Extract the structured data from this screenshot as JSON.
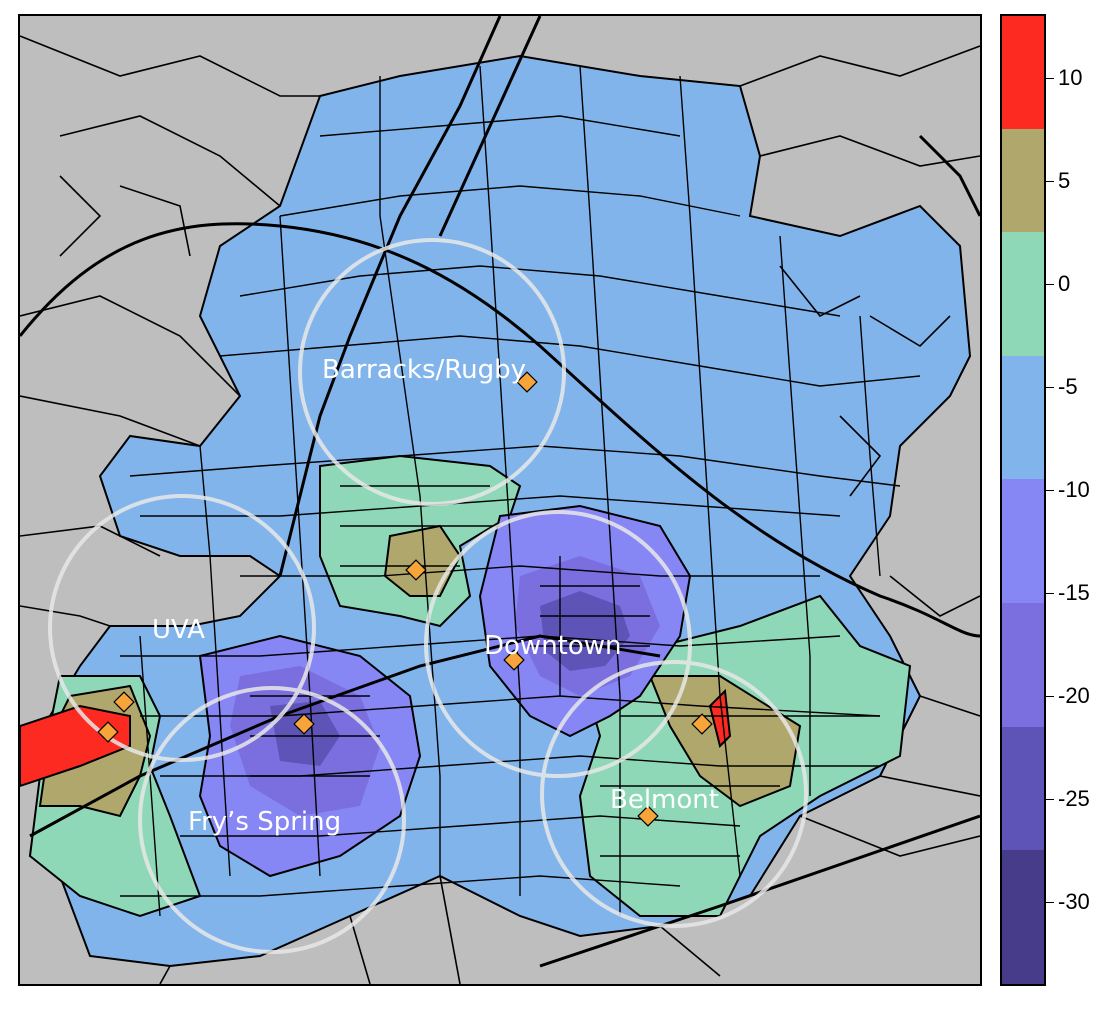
{
  "map": {
    "colors": {
      "background_land": "#bebebe",
      "street": "#000000",
      "circle": "#e8e8e8",
      "marker": "#f7a43a"
    },
    "neighborhoods": [
      {
        "label": "Barracks/Rugby",
        "value": -7
      },
      {
        "label": "UVA",
        "value": -7
      },
      {
        "label": "Downtown",
        "value": -20
      },
      {
        "label": "Fry’s Spring",
        "value": -20
      },
      {
        "label": "Belmont",
        "value": 0
      }
    ]
  },
  "legend": {
    "range": [
      -34,
      13
    ],
    "bands": [
      {
        "min": 7.5,
        "max": 13,
        "color": "#fc2a20"
      },
      {
        "min": 2.5,
        "max": 7.5,
        "color": "#b0a76c"
      },
      {
        "min": -3.5,
        "max": 2.5,
        "color": "#8ed8b8"
      },
      {
        "min": -9.5,
        "max": -3.5,
        "color": "#82b4ec"
      },
      {
        "min": -15.5,
        "max": -9.5,
        "color": "#8786f5"
      },
      {
        "min": -21.5,
        "max": -15.5,
        "color": "#7b6edf"
      },
      {
        "min": -27.5,
        "max": -21.5,
        "color": "#5e54b8"
      },
      {
        "min": -34,
        "max": -27.5,
        "color": "#463c8a"
      }
    ],
    "ticks": [
      "10",
      "5",
      "0",
      "-5",
      "-10",
      "-15",
      "-20",
      "-25",
      "-30"
    ],
    "tick_values": [
      10,
      5,
      0,
      -5,
      -10,
      -15,
      -20,
      -25,
      -30
    ]
  }
}
